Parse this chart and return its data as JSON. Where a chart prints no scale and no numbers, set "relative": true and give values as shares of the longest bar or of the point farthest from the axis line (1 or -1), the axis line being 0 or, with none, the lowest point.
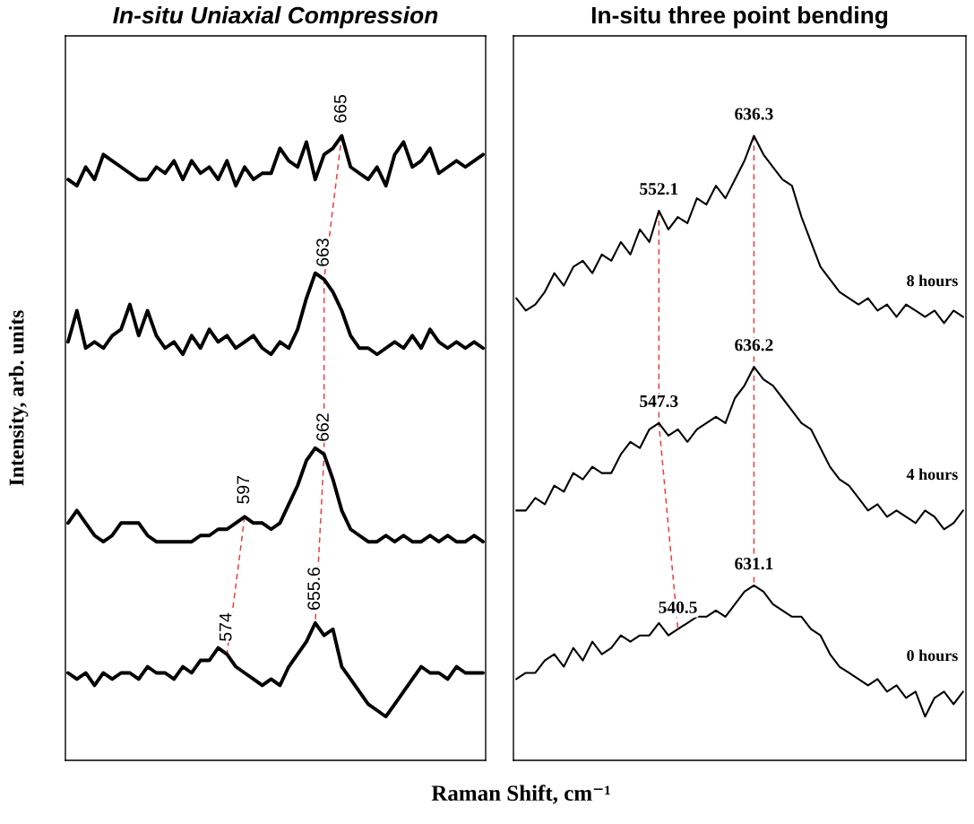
{
  "chart_data": [
    {
      "type": "line",
      "title": "In-situ Uniaxial Compression",
      "ylabel": "Intensity, arb. units",
      "xlabel": "Raman Shift, cm⁻¹",
      "relative": true,
      "categories": [
        null,
        null,
        null,
        null,
        null,
        null,
        null,
        null,
        null,
        null,
        null,
        null,
        null,
        null,
        null,
        null,
        null,
        null,
        null,
        null,
        null,
        null,
        null,
        null,
        null,
        null,
        null,
        null,
        null,
        null,
        null,
        null,
        null,
        null,
        null,
        null,
        null,
        null,
        null,
        null,
        null,
        null,
        null,
        null,
        null,
        null,
        null,
        null
      ],
      "series": [
        {
          "color": "#000000",
          "values": [
            0.93,
            0.92,
            0.95,
            0.93,
            0.97,
            0.96,
            0.95,
            0.94,
            0.93,
            0.93,
            0.95,
            0.94,
            0.96,
            0.93,
            0.96,
            0.94,
            0.95,
            0.93,
            0.96,
            0.92,
            0.95,
            0.93,
            0.94,
            0.94,
            0.98,
            0.96,
            0.95,
            0.99,
            0.93,
            0.97,
            0.98,
            1.0,
            0.95,
            0.94,
            0.93,
            0.95,
            0.92,
            0.97,
            0.99,
            0.95,
            0.96,
            0.98,
            0.94,
            0.95,
            0.96,
            0.95,
            0.96,
            0.97
          ]
        },
        {
          "color": "#000000",
          "values": [
            0.67,
            0.72,
            0.66,
            0.67,
            0.66,
            0.68,
            0.69,
            0.73,
            0.68,
            0.72,
            0.68,
            0.66,
            0.67,
            0.65,
            0.68,
            0.66,
            0.69,
            0.67,
            0.68,
            0.66,
            0.67,
            0.68,
            0.66,
            0.65,
            0.67,
            0.66,
            0.69,
            0.74,
            0.78,
            0.77,
            0.75,
            0.72,
            0.68,
            0.66,
            0.66,
            0.65,
            0.66,
            0.67,
            0.66,
            0.68,
            0.66,
            0.69,
            0.67,
            0.66,
            0.67,
            0.66,
            0.67,
            0.66
          ]
        },
        {
          "color": "#000000",
          "values": [
            0.38,
            0.4,
            0.38,
            0.36,
            0.35,
            0.36,
            0.38,
            0.38,
            0.38,
            0.36,
            0.35,
            0.35,
            0.35,
            0.35,
            0.35,
            0.36,
            0.36,
            0.37,
            0.37,
            0.38,
            0.39,
            0.38,
            0.38,
            0.37,
            0.38,
            0.41,
            0.44,
            0.48,
            0.5,
            0.49,
            0.45,
            0.4,
            0.37,
            0.36,
            0.35,
            0.35,
            0.36,
            0.35,
            0.36,
            0.35,
            0.35,
            0.36,
            0.35,
            0.36,
            0.35,
            0.35,
            0.36,
            0.35
          ]
        },
        {
          "color": "#000000",
          "values": [
            0.14,
            0.13,
            0.14,
            0.12,
            0.14,
            0.13,
            0.14,
            0.14,
            0.13,
            0.15,
            0.14,
            0.14,
            0.13,
            0.15,
            0.14,
            0.16,
            0.16,
            0.18,
            0.17,
            0.15,
            0.14,
            0.13,
            0.12,
            0.13,
            0.12,
            0.15,
            0.17,
            0.19,
            0.22,
            0.2,
            0.21,
            0.15,
            0.13,
            0.11,
            0.09,
            0.08,
            0.07,
            0.09,
            0.11,
            0.13,
            0.15,
            0.14,
            0.14,
            0.13,
            0.15,
            0.14,
            0.14,
            0.14
          ]
        }
      ],
      "annotations": [
        {
          "text": "665",
          "y": 1.0
        },
        {
          "text": "663",
          "y": 0.77
        },
        {
          "text": "597",
          "y": 0.39
        },
        {
          "text": "662",
          "y": 0.49
        },
        {
          "text": "574",
          "y": 0.17
        },
        {
          "text": "655.6",
          "y": 0.22
        }
      ]
    },
    {
      "type": "line",
      "title": "In-situ three point bending",
      "relative": true,
      "categories": [
        null,
        null,
        null,
        null,
        null,
        null,
        null,
        null,
        null,
        null,
        null,
        null,
        null,
        null,
        null,
        null,
        null,
        null,
        null,
        null,
        null,
        null,
        null,
        null,
        null,
        null,
        null,
        null,
        null,
        null,
        null,
        null,
        null,
        null,
        null,
        null,
        null,
        null,
        null,
        null,
        null,
        null,
        null,
        null,
        null,
        null,
        null,
        null
      ],
      "series": [
        {
          "name": "8 hours",
          "color": "#000000",
          "values": [
            0.74,
            0.72,
            0.73,
            0.75,
            0.78,
            0.76,
            0.79,
            0.8,
            0.78,
            0.81,
            0.8,
            0.83,
            0.81,
            0.85,
            0.83,
            0.88,
            0.85,
            0.87,
            0.86,
            0.9,
            0.89,
            0.92,
            0.9,
            0.93,
            0.96,
            1.0,
            0.97,
            0.95,
            0.93,
            0.92,
            0.87,
            0.83,
            0.79,
            0.77,
            0.75,
            0.74,
            0.73,
            0.74,
            0.72,
            0.73,
            0.71,
            0.73,
            0.72,
            0.71,
            0.72,
            0.7,
            0.72,
            0.71
          ]
        },
        {
          "name": "4 hours",
          "color": "#000000",
          "values": [
            0.4,
            0.4,
            0.42,
            0.41,
            0.44,
            0.43,
            0.46,
            0.45,
            0.47,
            0.46,
            0.46,
            0.49,
            0.51,
            0.5,
            0.53,
            0.54,
            0.52,
            0.53,
            0.51,
            0.53,
            0.54,
            0.55,
            0.54,
            0.58,
            0.6,
            0.63,
            0.61,
            0.6,
            0.58,
            0.56,
            0.54,
            0.53,
            0.5,
            0.47,
            0.45,
            0.44,
            0.42,
            0.4,
            0.41,
            0.39,
            0.4,
            0.39,
            0.38,
            0.4,
            0.39,
            0.37,
            0.38,
            0.4
          ]
        },
        {
          "name": "0 hours",
          "color": "#000000",
          "values": [
            0.13,
            0.14,
            0.14,
            0.16,
            0.17,
            0.15,
            0.18,
            0.16,
            0.19,
            0.17,
            0.18,
            0.2,
            0.19,
            0.2,
            0.2,
            0.22,
            0.2,
            0.21,
            0.22,
            0.23,
            0.23,
            0.24,
            0.23,
            0.25,
            0.27,
            0.28,
            0.27,
            0.25,
            0.24,
            0.23,
            0.23,
            0.21,
            0.2,
            0.17,
            0.15,
            0.14,
            0.13,
            0.12,
            0.13,
            0.11,
            0.12,
            0.1,
            0.11,
            0.07,
            0.1,
            0.11,
            0.09,
            0.11
          ]
        }
      ],
      "annotations": [
        {
          "text": "552.1",
          "y": 0.88
        },
        {
          "text": "636.3",
          "y": 1.0
        },
        {
          "text": "547.3",
          "y": 0.54
        },
        {
          "text": "636.2",
          "y": 0.63
        },
        {
          "text": "540.5",
          "y": 0.21
        },
        {
          "text": "631.1",
          "y": 0.28
        }
      ]
    }
  ]
}
